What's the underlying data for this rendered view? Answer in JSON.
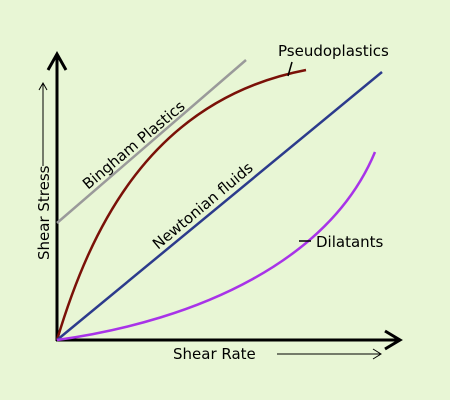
{
  "colors": {
    "background": "#e8f6d5",
    "axes": "#000000",
    "bingham": "#9a9a9a",
    "pseudoplastic": "#7a1108",
    "newtonian": "#2c3b8c",
    "dilatant": "#a833e8"
  },
  "axes": {
    "x_label": "Shear Rate",
    "y_label": "Shear Stress"
  },
  "curves": {
    "bingham": "Bingham Plastics",
    "pseudoplastic": "Pseudoplastics",
    "newtonian": "Newtonian fluids",
    "dilatant": "Dilatants"
  }
}
